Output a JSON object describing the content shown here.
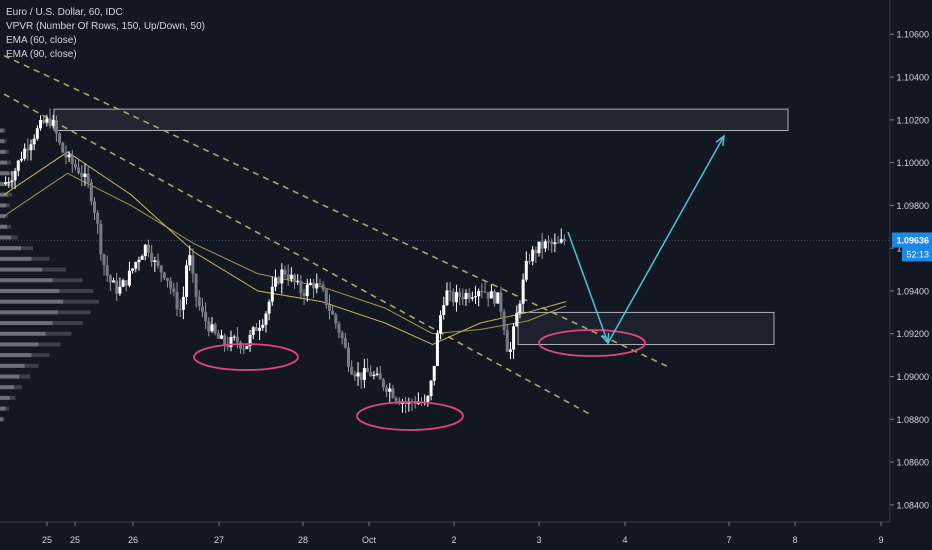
{
  "legend": {
    "symbol": "Euro / U.S. Dollar, 60, IDC",
    "vpvr": "VPVR (Number Of Rows, 150, Up/Down, 50)",
    "ema1": "EMA (60, close)",
    "ema2": "EMA (90, close)"
  },
  "price_label": {
    "value": "1.09636",
    "countdown": "52:13"
  },
  "colors": {
    "background": "#131722",
    "candle": "#ffffff",
    "ema": "#c9b458",
    "trendline": "#a8a66b",
    "arrow": "#4fc3d8",
    "ellipse": "#e0457b",
    "zone": "#d1d4dc",
    "price_tag": "#1e88e5",
    "axis_text": "#d1d4dc"
  },
  "chart_data": {
    "type": "candlestick",
    "y_axis": {
      "ticks": [
        "1.10600",
        "1.10400",
        "1.10200",
        "1.10000",
        "1.09800",
        "1.09600",
        "1.09400",
        "1.09200",
        "1.09000",
        "1.08800",
        "1.08600",
        "1.08400"
      ],
      "range": [
        1.0832,
        1.1076
      ]
    },
    "x_axis": {
      "ticks": [
        "25",
        "25",
        "26",
        "27",
        "28",
        "Oct",
        "2",
        "3",
        "4",
        "7",
        "8",
        "9"
      ]
    },
    "current_price": 1.09636,
    "price_path": [
      [
        0,
        1.099
      ],
      [
        6,
        1.0995
      ],
      [
        12,
        1.1005
      ],
      [
        18,
        1.1012
      ],
      [
        24,
        1.1018
      ],
      [
        30,
        1.102
      ],
      [
        36,
        1.1006
      ],
      [
        42,
        1.1
      ],
      [
        48,
        1.0996
      ],
      [
        54,
        1.0988
      ],
      [
        58,
        1.0975
      ],
      [
        62,
        1.0955
      ],
      [
        66,
        1.0945
      ],
      [
        72,
        1.094
      ],
      [
        78,
        1.0946
      ],
      [
        84,
        1.0955
      ],
      [
        90,
        1.0962
      ],
      [
        96,
        1.0951
      ],
      [
        102,
        1.0948
      ],
      [
        108,
        1.0935
      ],
      [
        112,
        1.093
      ],
      [
        116,
        1.096
      ],
      [
        120,
        1.094
      ],
      [
        124,
        1.093
      ],
      [
        128,
        1.0925
      ],
      [
        134,
        1.0918
      ],
      [
        140,
        1.0915
      ],
      [
        146,
        1.0917
      ],
      [
        152,
        1.0914
      ],
      [
        158,
        1.0922
      ],
      [
        164,
        1.0928
      ],
      [
        170,
        1.0942
      ],
      [
        176,
        1.095
      ],
      [
        182,
        1.0945
      ],
      [
        188,
        1.0939
      ],
      [
        194,
        1.0944
      ],
      [
        200,
        1.094
      ],
      [
        206,
        1.093
      ],
      [
        212,
        1.092
      ],
      [
        218,
        1.0905
      ],
      [
        224,
        1.09
      ],
      [
        230,
        1.0902
      ],
      [
        236,
        1.0898
      ],
      [
        242,
        1.0895
      ],
      [
        248,
        1.089
      ],
      [
        254,
        1.0887
      ],
      [
        260,
        1.0889
      ],
      [
        266,
        1.0886
      ],
      [
        270,
        1.09
      ],
      [
        274,
        1.0925
      ],
      [
        278,
        1.094
      ],
      [
        282,
        1.0936
      ],
      [
        288,
        1.0938
      ],
      [
        294,
        1.0939
      ],
      [
        300,
        1.0942
      ],
      [
        306,
        1.0938
      ],
      [
        312,
        1.0936
      ],
      [
        316,
        1.092
      ],
      [
        318,
        1.0908
      ],
      [
        322,
        1.0925
      ],
      [
        326,
        1.094
      ],
      [
        330,
        1.0955
      ],
      [
        336,
        1.096
      ],
      [
        342,
        1.0962
      ],
      [
        348,
        1.0961
      ],
      [
        354,
        1.0964
      ]
    ],
    "ema_60_path": [
      [
        0,
        1.0985
      ],
      [
        40,
        1.1005
      ],
      [
        80,
        1.0985
      ],
      [
        120,
        1.0958
      ],
      [
        160,
        1.094
      ],
      [
        200,
        1.0935
      ],
      [
        240,
        1.0925
      ],
      [
        270,
        1.0915
      ],
      [
        300,
        1.0925
      ],
      [
        330,
        1.093
      ],
      [
        354,
        1.0935
      ]
    ],
    "ema_90_path": [
      [
        0,
        1.0975
      ],
      [
        40,
        1.0995
      ],
      [
        80,
        1.098
      ],
      [
        120,
        1.0962
      ],
      [
        160,
        1.0948
      ],
      [
        200,
        1.0942
      ],
      [
        240,
        1.0932
      ],
      [
        270,
        1.092
      ],
      [
        300,
        1.0922
      ],
      [
        330,
        1.0926
      ],
      [
        354,
        1.0933
      ]
    ],
    "trendline_1": [
      [
        0,
        1.105
      ],
      [
        420,
        1.0904
      ]
    ],
    "trendline_2": [
      [
        0,
        1.1032
      ],
      [
        370,
        1.0882
      ]
    ],
    "resistance_zone": [
      1.1025,
      1.1015
    ],
    "support_zone": [
      1.093,
      1.0915
    ],
    "projection_arrow": [
      [
        354,
        1.0967
      ],
      [
        375,
        1.0917
      ],
      [
        430,
        1.1013
      ]
    ],
    "marked_lows": [
      [
        160,
        1.0912
      ],
      [
        258,
        1.0885
      ],
      [
        375,
        1.0915
      ]
    ],
    "volume_profile": [
      [
        1.1015,
        10
      ],
      [
        1.101,
        12
      ],
      [
        1.1005,
        16
      ],
      [
        1.1,
        20
      ],
      [
        1.0995,
        26
      ],
      [
        1.099,
        28
      ],
      [
        1.0985,
        22
      ],
      [
        1.098,
        18
      ],
      [
        1.0975,
        14
      ],
      [
        1.097,
        20
      ],
      [
        1.0965,
        32
      ],
      [
        1.096,
        60
      ],
      [
        1.0955,
        90
      ],
      [
        1.095,
        120
      ],
      [
        1.0945,
        150
      ],
      [
        1.094,
        170
      ],
      [
        1.0935,
        180
      ],
      [
        1.093,
        165
      ],
      [
        1.0925,
        150
      ],
      [
        1.092,
        130
      ],
      [
        1.0915,
        110
      ],
      [
        1.091,
        90
      ],
      [
        1.0905,
        70
      ],
      [
        1.09,
        55
      ],
      [
        1.0895,
        40
      ],
      [
        1.089,
        28
      ],
      [
        1.0885,
        16
      ],
      [
        1.088,
        8
      ]
    ]
  }
}
